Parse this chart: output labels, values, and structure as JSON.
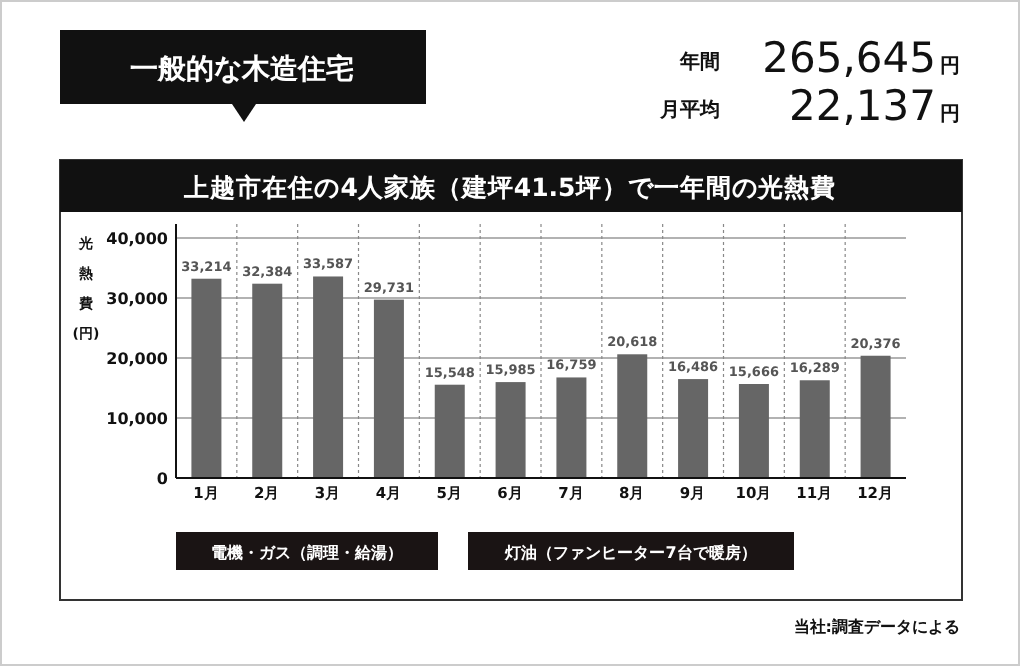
{
  "chart_data": {
    "type": "bar",
    "title": "上越市在住の4人家族（建坪41.5坪）で一年間の光熱費",
    "ylabel": "光熱費(円)",
    "categories": [
      "1月",
      "2月",
      "3月",
      "4月",
      "5月",
      "6月",
      "7月",
      "8月",
      "9月",
      "10月",
      "11月",
      "12月"
    ],
    "values": [
      33214,
      32384,
      33587,
      29731,
      15548,
      15985,
      16759,
      20618,
      16486,
      15666,
      16289,
      20376
    ],
    "value_labels": [
      "33,214",
      "32,384",
      "33,587",
      "29,731",
      "15,548",
      "15,985",
      "16,759",
      "20,618",
      "16,486",
      "15,666",
      "16,289",
      "20,376"
    ],
    "color": "#666666",
    "ylim": [
      0,
      40000
    ],
    "yticks": [
      0,
      {
        "value": 10000,
        "label": "10,000"
      },
      {
        "value": 20000,
        "label": "20,000"
      },
      {
        "value": 30000,
        "label": "30,000"
      },
      {
        "value": 40000,
        "label": "40,000"
      }
    ],
    "grid": true,
    "annotations": [
      "一般的な木造住宅",
      "年間",
      "265,645",
      "円",
      "月平均",
      "22,137",
      "円",
      "電機・ガス（調理・給湯）",
      "灯油（ファンヒーター7台で暖房）",
      "当社:調査データによる"
    ]
  }
}
